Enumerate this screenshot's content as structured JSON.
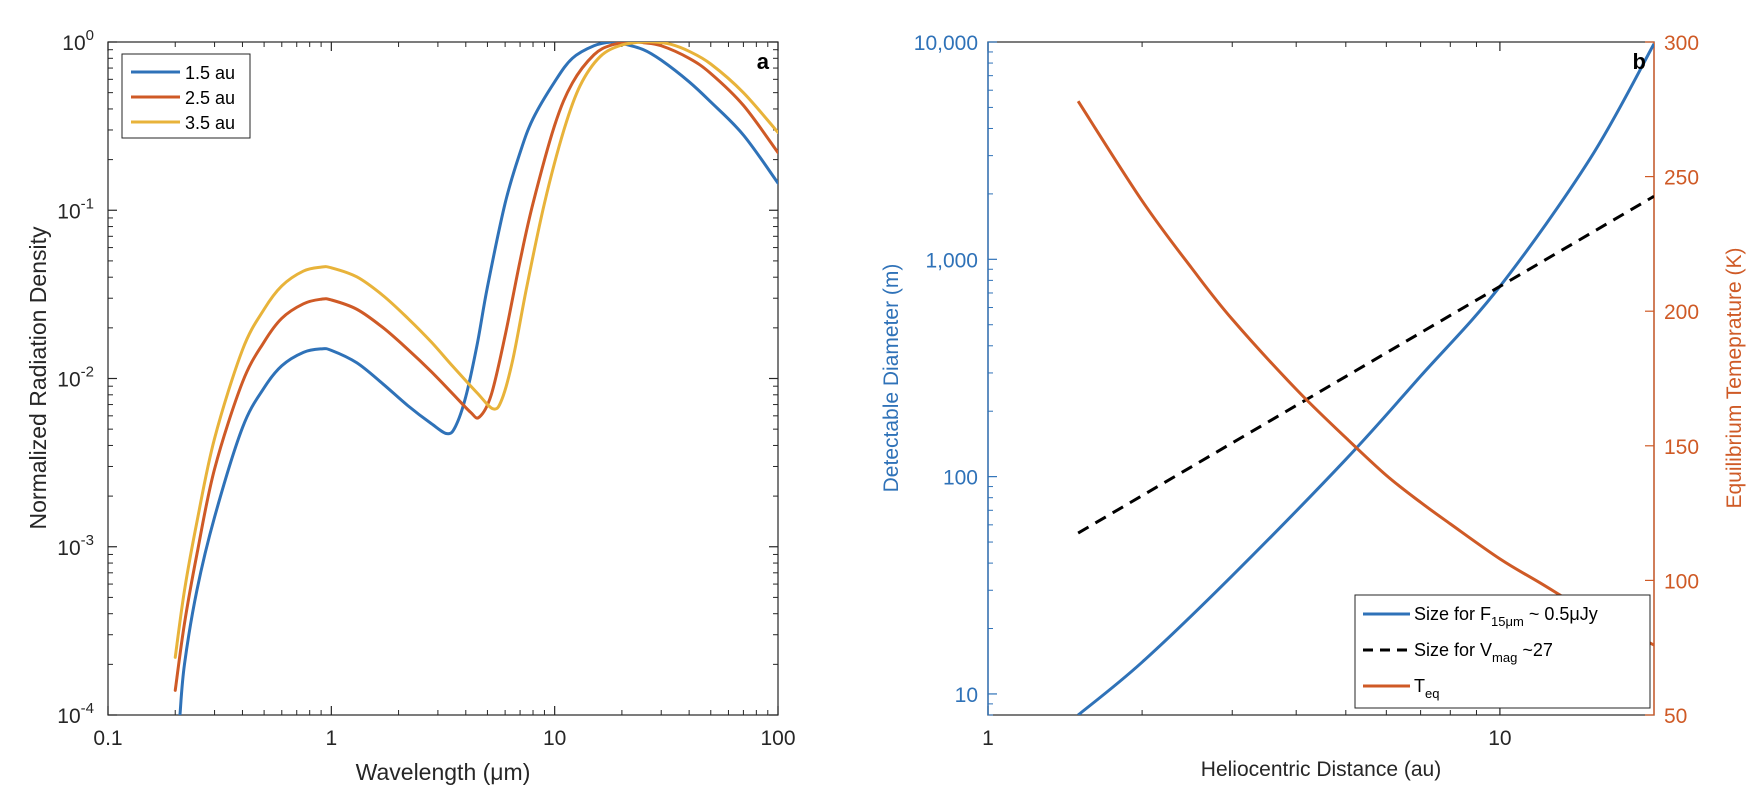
{
  "colors": {
    "blue": "#2f72b8",
    "orange": "#cf5a26",
    "yellow": "#e8b33a",
    "black": "#000000",
    "axis": "#262626"
  },
  "chart_data": [
    {
      "type": "line",
      "panel_label": "a",
      "title": "",
      "xlabel": "Wavelength (μm)",
      "ylabel": "Normalized Radiation Density",
      "xscale": "log",
      "yscale": "log",
      "xlim": [
        0.1,
        100
      ],
      "ylim": [
        0.0001,
        1
      ],
      "x_ticks": [
        {
          "value": 0.1,
          "label": "0.1"
        },
        {
          "value": 1,
          "label": "1"
        },
        {
          "value": 10,
          "label": "10"
        },
        {
          "value": 100,
          "label": "100"
        }
      ],
      "y_ticks": [
        {
          "value": 0.0001,
          "base": "10",
          "exp": "-4"
        },
        {
          "value": 0.001,
          "base": "10",
          "exp": "-3"
        },
        {
          "value": 0.01,
          "base": "10",
          "exp": "-2"
        },
        {
          "value": 0.1,
          "base": "10",
          "exp": "-1"
        },
        {
          "value": 1,
          "base": "10",
          "exp": "0"
        }
      ],
      "legend_position": "top-left",
      "series": [
        {
          "name": "1.5 au",
          "color": "blue",
          "x": [
            0.21,
            0.22,
            0.25,
            0.3,
            0.4,
            0.5,
            0.6,
            0.75,
            0.9,
            1.0,
            1.3,
            1.7,
            2.2,
            2.8,
            3.3,
            3.6,
            4.0,
            4.5,
            5,
            6,
            7,
            8,
            10,
            12,
            15,
            18,
            20,
            25,
            30,
            40,
            50,
            70,
            100
          ],
          "y": [
            0.0001,
            0.0002,
            0.00055,
            0.0015,
            0.0051,
            0.0088,
            0.0119,
            0.0143,
            0.015,
            0.0147,
            0.0124,
            0.0093,
            0.0069,
            0.0054,
            0.0047,
            0.0052,
            0.0078,
            0.016,
            0.035,
            0.11,
            0.22,
            0.35,
            0.58,
            0.8,
            0.95,
            1.0,
            0.98,
            0.9,
            0.78,
            0.58,
            0.44,
            0.28,
            0.145
          ]
        },
        {
          "name": "2.5 au",
          "color": "orange",
          "x": [
            0.2,
            0.22,
            0.25,
            0.3,
            0.4,
            0.5,
            0.6,
            0.75,
            0.9,
            1.0,
            1.3,
            1.7,
            2.2,
            2.8,
            3.5,
            4.2,
            4.6,
            5.2,
            6,
            7,
            8,
            10,
            12,
            15,
            18,
            22,
            25,
            30,
            40,
            50,
            70,
            100
          ],
          "y": [
            0.00014,
            0.00035,
            0.0009,
            0.0029,
            0.0095,
            0.0165,
            0.0228,
            0.0278,
            0.0296,
            0.0293,
            0.0258,
            0.0201,
            0.0149,
            0.011,
            0.0081,
            0.0063,
            0.0059,
            0.008,
            0.018,
            0.05,
            0.11,
            0.32,
            0.57,
            0.84,
            0.96,
            1.0,
            0.99,
            0.95,
            0.8,
            0.65,
            0.42,
            0.22
          ]
        },
        {
          "name": "3.5 au",
          "color": "yellow",
          "x": [
            0.2,
            0.22,
            0.25,
            0.3,
            0.4,
            0.5,
            0.6,
            0.75,
            0.9,
            1.0,
            1.3,
            1.7,
            2.2,
            2.8,
            3.5,
            4.5,
            5.3,
            5.8,
            6.5,
            7.5,
            9,
            11,
            13,
            16,
            20,
            25,
            28,
            33,
            40,
            50,
            70,
            100
          ],
          "y": [
            0.00022,
            0.00055,
            0.0014,
            0.0044,
            0.0148,
            0.0258,
            0.0355,
            0.0435,
            0.0459,
            0.0455,
            0.0402,
            0.0312,
            0.0228,
            0.0165,
            0.0118,
            0.0082,
            0.0066,
            0.0075,
            0.013,
            0.035,
            0.11,
            0.3,
            0.55,
            0.82,
            0.96,
            1.0,
            1.0,
            0.97,
            0.88,
            0.74,
            0.5,
            0.29
          ]
        }
      ]
    },
    {
      "type": "line",
      "panel_label": "b",
      "title": "",
      "xlabel": "Heliocentric Distance (au)",
      "ylabel_left": "Detectable Diameter (m)",
      "ylabel_right": "Equilibrium Temeprature (K)",
      "xscale": "log",
      "yscale_left": "log",
      "yscale_right": "linear",
      "xlim": [
        1,
        20
      ],
      "ylim_left": [
        8,
        10000
      ],
      "ylim_right": [
        50,
        300
      ],
      "x_ticks": [
        {
          "value": 1,
          "label": "1"
        },
        {
          "value": 10,
          "label": "10"
        }
      ],
      "y_ticks_left": [
        {
          "value": 10,
          "label": "10"
        },
        {
          "value": 100,
          "label": "100"
        },
        {
          "value": 1000,
          "label": "1,000"
        },
        {
          "value": 10000,
          "label": "10,000"
        }
      ],
      "y_ticks_right": [
        {
          "value": 50,
          "label": "50"
        },
        {
          "value": 100,
          "label": "100"
        },
        {
          "value": 150,
          "label": "150"
        },
        {
          "value": 200,
          "label": "200"
        },
        {
          "value": 250,
          "label": "250"
        },
        {
          "value": 300,
          "label": "300"
        }
      ],
      "legend_position": "bottom-right",
      "series": [
        {
          "name": "Size for F15μm ~ 0.5μJy",
          "legend_main": "Size for F",
          "legend_sub": "15μm",
          "legend_tail": " ~ 0.5μJy",
          "color": "blue",
          "style": "solid",
          "axis": "left",
          "x": [
            1.5,
            2,
            3,
            5,
            7,
            10,
            15,
            20
          ],
          "y": [
            8,
            14,
            35,
            120,
            290,
            750,
            2900,
            9800
          ]
        },
        {
          "name": "Size for Vmag ~27",
          "legend_main": "Size for V",
          "legend_sub": "mag",
          "legend_tail": " ~27",
          "color": "black",
          "style": "dashed",
          "axis": "left",
          "x": [
            1.5,
            20
          ],
          "y": [
            55,
            1950
          ]
        },
        {
          "name": "Teq",
          "legend_main": "T",
          "legend_sub": "eq",
          "legend_tail": "",
          "color": "orange",
          "style": "solid",
          "axis": "right",
          "x": [
            1.5,
            2,
            2.5,
            3,
            4,
            5,
            6,
            7,
            8,
            10,
            12,
            15,
            20
          ],
          "y": [
            278,
            241,
            216,
            197,
            171,
            153,
            139,
            129,
            121,
            108,
            99,
            88,
            76
          ]
        }
      ]
    }
  ]
}
